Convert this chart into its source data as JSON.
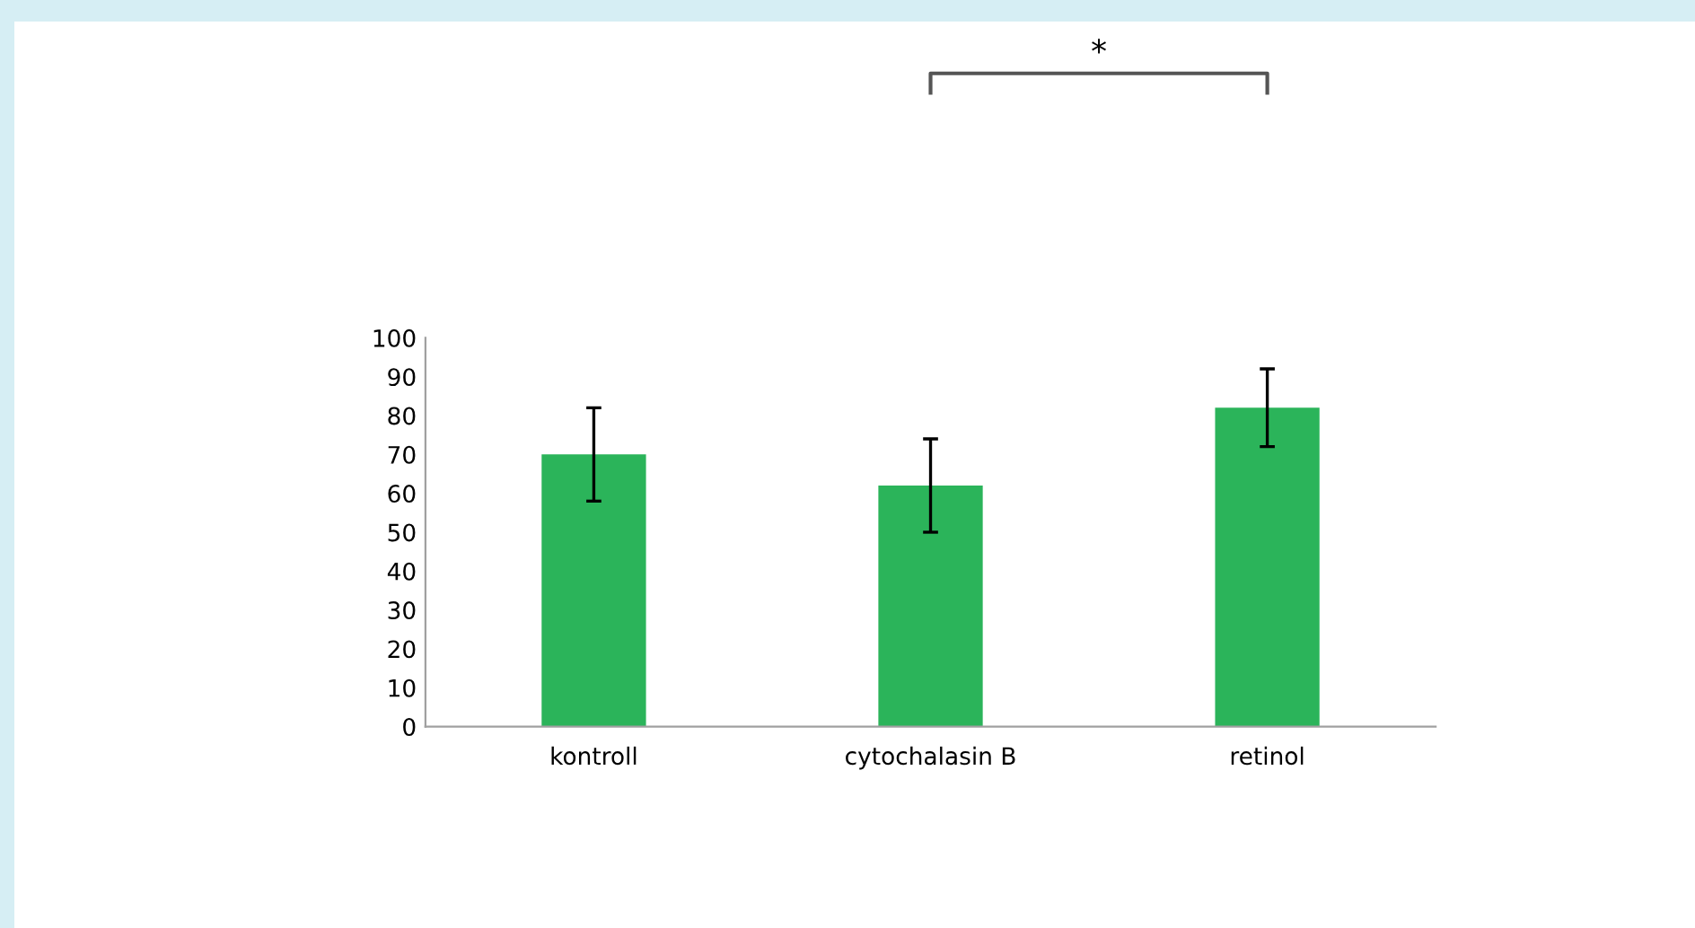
{
  "chart_data": {
    "type": "bar",
    "categories": [
      "kontroll",
      "cytochalasin B",
      "retinol"
    ],
    "values": [
      70,
      62,
      82
    ],
    "errors": [
      12,
      12,
      10
    ],
    "color": "#2bb45a",
    "ylim": [
      0,
      100
    ],
    "yticks": [
      0,
      10,
      20,
      30,
      40,
      50,
      60,
      70,
      80,
      90,
      100
    ],
    "grid": false,
    "annotations": [
      "*"
    ]
  }
}
